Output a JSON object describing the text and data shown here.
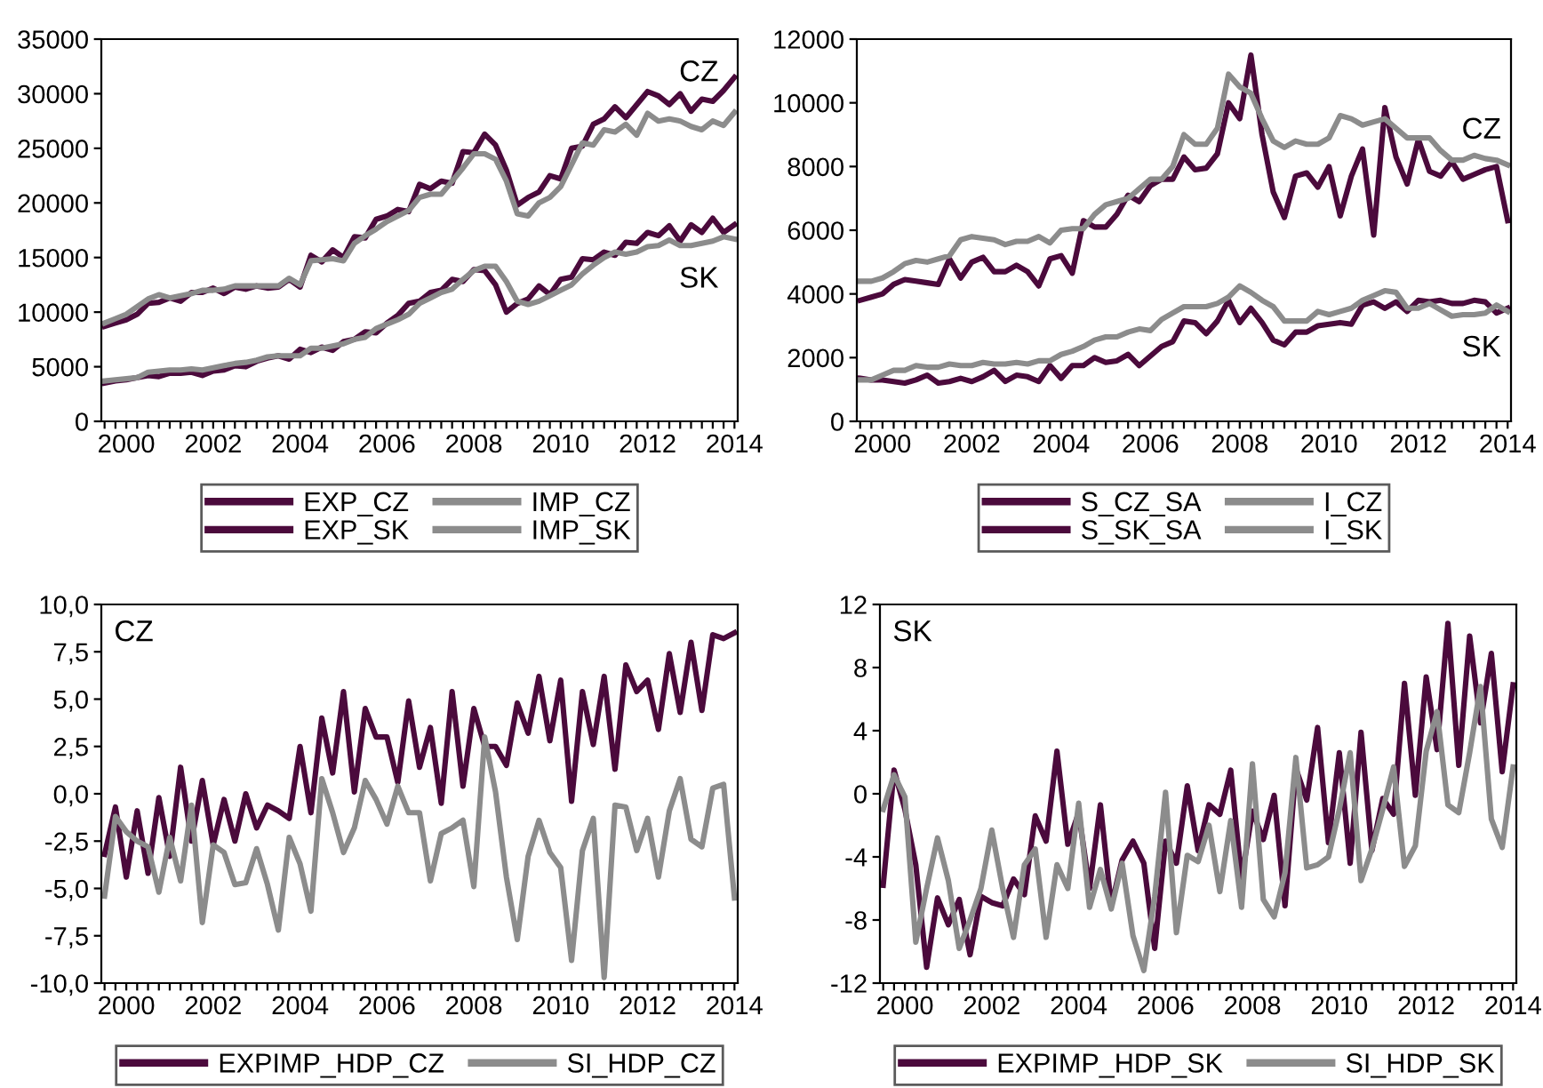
{
  "chart_data": [
    {
      "type": "line",
      "categories": [
        null,
        null,
        "2000",
        null,
        null,
        null,
        null,
        null,
        null,
        null,
        "2002",
        null,
        null,
        null,
        null,
        null,
        null,
        null,
        "2004",
        null,
        null,
        null,
        null,
        null,
        null,
        null,
        "2006",
        null,
        null,
        null,
        null,
        null,
        null,
        null,
        "2008",
        null,
        null,
        null,
        null,
        null,
        null,
        null,
        "2010",
        null,
        null,
        null,
        null,
        null,
        null,
        null,
        "2012",
        null,
        null,
        null,
        null,
        null,
        null,
        null,
        "2014"
      ],
      "series": [
        {
          "name": "EXP_CZ",
          "color": "#4b0a3c",
          "values": [
            8700,
            9000,
            9300,
            9800,
            10800,
            10900,
            11300,
            11000,
            11800,
            11800,
            12200,
            11700,
            12300,
            12100,
            12400,
            12200,
            12300,
            13000,
            12300,
            15200,
            14600,
            15700,
            15000,
            16900,
            16800,
            18500,
            18800,
            19400,
            19200,
            21700,
            21300,
            22000,
            21800,
            24700,
            24600,
            26300,
            25300,
            23000,
            19800,
            20500,
            21000,
            22500,
            22200,
            25000,
            25200,
            27200,
            27700,
            28800,
            27800,
            29000,
            30200,
            29800,
            29000,
            30000,
            28400,
            29500,
            29300,
            30300,
            31500
          ]
        },
        {
          "name": "IMP_CZ",
          "color": "#8c8c8c",
          "values": [
            9000,
            9400,
            9800,
            10500,
            11200,
            11600,
            11300,
            11500,
            11700,
            12000,
            12000,
            12100,
            12400,
            12400,
            12400,
            12400,
            12400,
            13100,
            12500,
            14700,
            14800,
            14900,
            14700,
            16300,
            17000,
            17600,
            18300,
            18800,
            19300,
            20500,
            20800,
            20800,
            22000,
            23200,
            24500,
            24500,
            24000,
            22000,
            19000,
            18800,
            20000,
            20500,
            21500,
            23500,
            25500,
            25300,
            26700,
            26500,
            27200,
            26200,
            28200,
            27500,
            27700,
            27500,
            27000,
            26700,
            27500,
            27100,
            28300
          ]
        },
        {
          "name": "EXP_SK",
          "color": "#4b0a3c",
          "values": [
            3500,
            3700,
            3800,
            4000,
            4200,
            4100,
            4400,
            4400,
            4500,
            4200,
            4600,
            4700,
            5100,
            5000,
            5500,
            5800,
            6000,
            5700,
            6600,
            6300,
            6800,
            6500,
            7300,
            7500,
            8200,
            8100,
            9000,
            9700,
            10800,
            11000,
            11800,
            12000,
            13000,
            12800,
            13900,
            13800,
            12500,
            10000,
            10800,
            11200,
            12400,
            11600,
            13000,
            13200,
            14900,
            14800,
            15500,
            15200,
            16400,
            16300,
            17300,
            17000,
            17900,
            16500,
            18000,
            17300,
            18600,
            17300,
            18000
          ]
        },
        {
          "name": "IMP_SK",
          "color": "#8c8c8c",
          "values": [
            3700,
            3800,
            3900,
            4000,
            4500,
            4600,
            4700,
            4700,
            4800,
            4700,
            4900,
            5100,
            5300,
            5400,
            5600,
            5900,
            6000,
            6000,
            6000,
            6700,
            6700,
            6900,
            7100,
            7500,
            7700,
            8500,
            8900,
            9300,
            9800,
            10800,
            11300,
            11800,
            12100,
            13000,
            13800,
            14200,
            14200,
            12800,
            11000,
            10700,
            11000,
            11500,
            12000,
            12500,
            13500,
            14300,
            15000,
            15500,
            15300,
            15500,
            16000,
            16100,
            16600,
            16100,
            16100,
            16300,
            16500,
            16900,
            16700
          ]
        }
      ],
      "ylim": [
        0,
        35000
      ],
      "yticks": [
        0,
        5000,
        10000,
        15000,
        20000,
        25000,
        30000,
        35000
      ],
      "legend": "bottom",
      "annotations": [
        "CZ",
        "SK"
      ]
    },
    {
      "type": "line",
      "categories": [
        null,
        null,
        "2000",
        null,
        null,
        null,
        null,
        null,
        null,
        null,
        "2002",
        null,
        null,
        null,
        null,
        null,
        null,
        null,
        "2004",
        null,
        null,
        null,
        null,
        null,
        null,
        null,
        "2006",
        null,
        null,
        null,
        null,
        null,
        null,
        null,
        "2008",
        null,
        null,
        null,
        null,
        null,
        null,
        null,
        "2010",
        null,
        null,
        null,
        null,
        null,
        null,
        null,
        "2012",
        null,
        null,
        null,
        null,
        null,
        null,
        null,
        "2014"
      ],
      "series": [
        {
          "name": "S_CZ_SA",
          "color": "#4b0a3c",
          "values": [
            3800,
            3900,
            4000,
            4300,
            4450,
            4400,
            4350,
            4300,
            5100,
            4500,
            5000,
            5150,
            4700,
            4700,
            4900,
            4700,
            4250,
            5100,
            5200,
            4650,
            6300,
            6100,
            6100,
            6500,
            7100,
            6900,
            7400,
            7600,
            7600,
            8300,
            7900,
            7950,
            8400,
            10000,
            9500,
            11500,
            9000,
            7200,
            6400,
            7700,
            7800,
            7350,
            8000,
            6450,
            7700,
            8550,
            5850,
            9850,
            8300,
            7450,
            8850,
            7850,
            7700,
            8150,
            7600,
            7750,
            7900,
            8000,
            6300
          ]
        },
        {
          "name": "I_CZ",
          "color": "#8c8c8c",
          "values": [
            4400,
            4400,
            4500,
            4700,
            4950,
            5050,
            5000,
            5100,
            5200,
            5700,
            5800,
            5750,
            5700,
            5550,
            5650,
            5650,
            5800,
            5600,
            6000,
            6050,
            6050,
            6500,
            6800,
            6900,
            7000,
            7300,
            7600,
            7600,
            8000,
            9000,
            8700,
            8700,
            9200,
            10900,
            10500,
            10300,
            9500,
            8800,
            8600,
            8800,
            8700,
            8700,
            8900,
            9600,
            9500,
            9300,
            9400,
            9500,
            9200,
            8900,
            8900,
            8900,
            8500,
            8200,
            8200,
            8350,
            8250,
            8200,
            8050
          ]
        },
        {
          "name": "S_SK_SA",
          "color": "#4b0a3c",
          "values": [
            1350,
            1300,
            1300,
            1250,
            1200,
            1300,
            1450,
            1200,
            1250,
            1350,
            1250,
            1400,
            1600,
            1250,
            1450,
            1400,
            1250,
            1750,
            1350,
            1750,
            1750,
            2000,
            1850,
            1900,
            2100,
            1750,
            2050,
            2350,
            2500,
            3150,
            3100,
            2750,
            3150,
            3800,
            3100,
            3550,
            3100,
            2550,
            2400,
            2800,
            2800,
            3000,
            3050,
            3100,
            3050,
            3650,
            3750,
            3550,
            3750,
            3450,
            3800,
            3750,
            3800,
            3700,
            3700,
            3800,
            3750,
            3400,
            3550
          ]
        },
        {
          "name": "I_SK",
          "color": "#8c8c8c",
          "values": [
            1300,
            1300,
            1450,
            1600,
            1600,
            1750,
            1700,
            1700,
            1800,
            1750,
            1750,
            1850,
            1800,
            1800,
            1850,
            1800,
            1900,
            1900,
            2100,
            2200,
            2350,
            2550,
            2650,
            2650,
            2800,
            2900,
            2850,
            3200,
            3400,
            3600,
            3600,
            3600,
            3700,
            3900,
            4250,
            4050,
            3800,
            3600,
            3150,
            3150,
            3150,
            3450,
            3350,
            3450,
            3550,
            3800,
            3950,
            4100,
            4050,
            3550,
            3550,
            3700,
            3500,
            3300,
            3350,
            3350,
            3400,
            3650,
            3450
          ]
        }
      ],
      "ylim": [
        0,
        12000
      ],
      "yticks": [
        0,
        2000,
        4000,
        6000,
        8000,
        10000,
        12000
      ],
      "legend": "bottom",
      "annotations": [
        "CZ",
        "SK"
      ]
    },
    {
      "type": "line",
      "categories": [
        null,
        null,
        "2000",
        null,
        null,
        null,
        null,
        null,
        null,
        null,
        "2002",
        null,
        null,
        null,
        null,
        null,
        null,
        null,
        "2004",
        null,
        null,
        null,
        null,
        null,
        null,
        null,
        "2006",
        null,
        null,
        null,
        null,
        null,
        null,
        null,
        "2008",
        null,
        null,
        null,
        null,
        null,
        null,
        null,
        "2010",
        null,
        null,
        null,
        null,
        null,
        null,
        null,
        "2012",
        null,
        null,
        null,
        null,
        null,
        null,
        null,
        "2014"
      ],
      "series": [
        {
          "name": "EXPIMP_HDP_CZ",
          "color": "#4b0a3c",
          "values": [
            -3.2,
            -0.7,
            -4.4,
            -0.9,
            -4.2,
            -0.2,
            -3.3,
            1.4,
            -2.5,
            0.7,
            -2.7,
            -0.3,
            -2.5,
            0.0,
            -1.8,
            -0.6,
            -0.9,
            -1.3,
            2.5,
            -1.0,
            4.0,
            1.1,
            5.4,
            0.1,
            4.5,
            3.0,
            3.0,
            0.6,
            4.9,
            1.4,
            3.5,
            -0.5,
            5.4,
            0.4,
            4.5,
            2.5,
            2.5,
            1.5,
            4.8,
            3.2,
            6.2,
            2.8,
            6.0,
            -0.4,
            5.4,
            2.6,
            6.2,
            1.3,
            6.8,
            5.4,
            6.0,
            3.4,
            7.4,
            4.3,
            8.0,
            4.4,
            8.4,
            8.2,
            8.5
          ]
        },
        {
          "name": "SI_HDP_CZ",
          "color": "#8c8c8c",
          "values": [
            -5.4,
            -1.2,
            -2.0,
            -2.5,
            -2.8,
            -5.2,
            -2.3,
            -4.6,
            -0.6,
            -6.8,
            -2.7,
            -3.1,
            -4.8,
            -4.7,
            -2.9,
            -4.8,
            -7.2,
            -2.3,
            -3.7,
            -6.2,
            0.8,
            -1.0,
            -3.1,
            -1.8,
            0.7,
            -0.3,
            -1.6,
            0.4,
            -1.0,
            -1.0,
            -4.6,
            -2.1,
            -1.8,
            -1.4,
            -4.9,
            3.0,
            0.1,
            -4.4,
            -7.7,
            -3.3,
            -1.4,
            -3.1,
            -3.9,
            -8.8,
            -3.0,
            -1.3,
            -9.7,
            -0.6,
            -0.7,
            -3.0,
            -1.3,
            -4.4,
            -0.9,
            0.8,
            -2.4,
            -2.8,
            0.3,
            0.5,
            -5.5
          ]
        }
      ],
      "ylim": [
        -10,
        10
      ],
      "yticks": [
        {
          "value": -10,
          "label": "-10,0"
        },
        {
          "value": -7.5,
          "label": "-7,5"
        },
        {
          "value": -5,
          "label": "-5,0"
        },
        {
          "value": -2.5,
          "label": "-2,5"
        },
        {
          "value": 0,
          "label": "0,0"
        },
        {
          "value": 2.5,
          "label": "2,5"
        },
        {
          "value": 5,
          "label": "5,0"
        },
        {
          "value": 7.5,
          "label": "7,5"
        },
        {
          "value": 10,
          "label": "10,0"
        }
      ],
      "legend": "bottom",
      "annotations": [
        "CZ"
      ]
    },
    {
      "type": "line",
      "categories": [
        null,
        null,
        "2000",
        null,
        null,
        null,
        null,
        null,
        null,
        null,
        "2002",
        null,
        null,
        null,
        null,
        null,
        null,
        null,
        "2004",
        null,
        null,
        null,
        null,
        null,
        null,
        null,
        "2006",
        null,
        null,
        null,
        null,
        null,
        null,
        null,
        "2008",
        null,
        null,
        null,
        null,
        null,
        null,
        null,
        "2010",
        null,
        null,
        null,
        null,
        null,
        null,
        null,
        "2012",
        null,
        null,
        null,
        null,
        null,
        null,
        null,
        "2014"
      ],
      "series": [
        {
          "name": "EXPIMP_HDP_SK",
          "color": "#4b0a3c",
          "values": [
            -5.8,
            1.5,
            -1.0,
            -4.5,
            -11.0,
            -6.6,
            -8.3,
            -6.7,
            -10.2,
            -6.5,
            -6.9,
            -7.1,
            -5.4,
            -6.4,
            -1.4,
            -3.0,
            2.7,
            -3.2,
            -1.2,
            -6.0,
            -0.7,
            -7.1,
            -4.2,
            -3.0,
            -4.4,
            -9.8,
            -3.0,
            -4.4,
            0.5,
            -3.6,
            -0.7,
            -1.3,
            1.5,
            -5.4,
            -1.1,
            -2.9,
            -0.1,
            -7.1,
            1.6,
            -0.4,
            4.2,
            -3.1,
            2.6,
            -4.4,
            3.9,
            -3.6,
            -0.3,
            -1.3,
            7.0,
            -0.1,
            7.4,
            2.8,
            10.8,
            1.8,
            10.0,
            4.5,
            8.9,
            1.4,
            6.9
          ]
        },
        {
          "name": "SI_HDP_SK",
          "color": "#8c8c8c",
          "values": [
            -1.0,
            1.2,
            -0.2,
            -9.4,
            -6.0,
            -2.8,
            -5.5,
            -9.8,
            -8.0,
            -6.0,
            -2.3,
            -6.0,
            -9.1,
            -4.5,
            -3.5,
            -9.1,
            -4.5,
            -6.0,
            -0.6,
            -7.2,
            -4.8,
            -7.3,
            -4.4,
            -9.0,
            -11.2,
            -6.5,
            0.1,
            -8.8,
            -3.9,
            -4.3,
            -2.0,
            -6.2,
            -1.7,
            -7.2,
            1.9,
            -6.7,
            -7.8,
            -5.0,
            2.3,
            -4.7,
            -4.5,
            -4.0,
            -1.0,
            2.6,
            -5.5,
            -3.5,
            -1.0,
            1.7,
            -4.6,
            -3.3,
            2.7,
            5.2,
            -0.7,
            -1.2,
            2.6,
            6.8,
            -1.6,
            -3.4,
            1.7
          ]
        }
      ],
      "ylim": [
        -12,
        12
      ],
      "yticks": [
        -12,
        -8,
        -4,
        0,
        4,
        8,
        12
      ],
      "legend": "bottom",
      "annotations": [
        "SK"
      ]
    }
  ]
}
